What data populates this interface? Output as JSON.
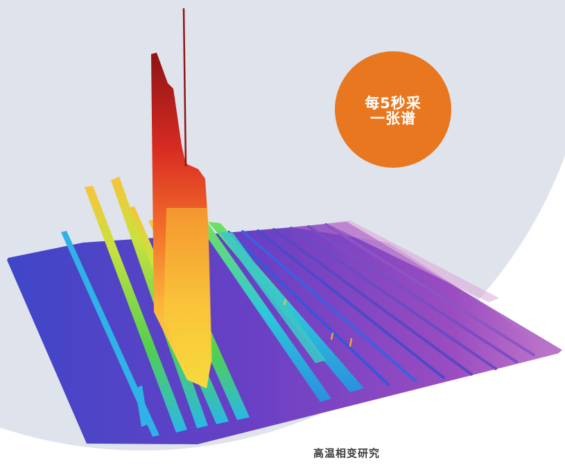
{
  "badge": {
    "line1": "每5秒采",
    "line2": "一张谱",
    "color": "#e8771f"
  },
  "caption": "高温相变研究",
  "colors": {
    "background_circle": "#dfe3ec",
    "plot_base": "#5b3fc0",
    "plot_far": "#b066c8",
    "peak_top": "#9c1b1b",
    "ridge_yellow": "#f1e23a",
    "ridge_green": "#57d04b",
    "ridge_cyan": "#2ec0e8"
  },
  "icons": [
    "3d-spectrum-waterfall-image"
  ]
}
